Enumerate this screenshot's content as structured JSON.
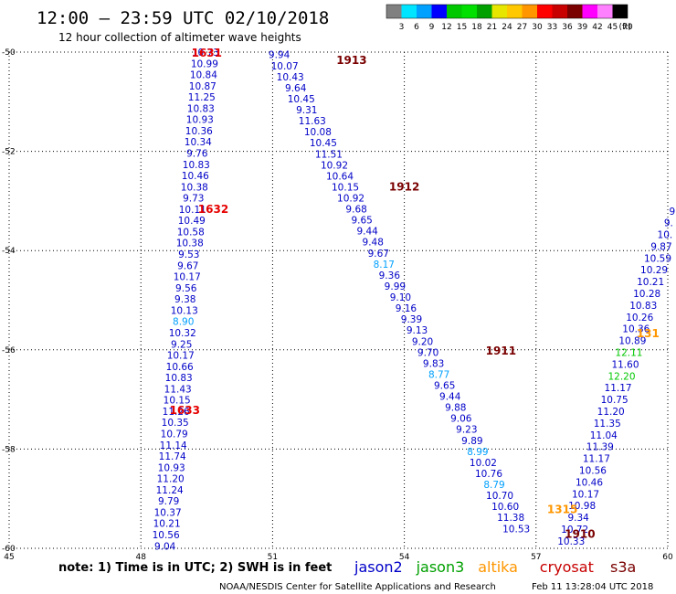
{
  "header": {
    "title": "12:00 – 23:59 UTC 02/10/2018",
    "subtitle": "12 hour collection of altimeter wave heights"
  },
  "legend_scale": {
    "labels": [
      "3",
      "6",
      "9",
      "12",
      "15",
      "18",
      "21",
      "24",
      "27",
      "30",
      "33",
      "36",
      "39",
      "42",
      "45",
      "70"
    ],
    "unit": "(ft)",
    "colors": [
      "#808080",
      "#00e5ff",
      "#00a0ff",
      "#0000ff",
      "#00c800",
      "#00e000",
      "#00a000",
      "#e6e600",
      "#ffc800",
      "#ff9600",
      "#ff0000",
      "#c80000",
      "#7a0000",
      "#ff00ff",
      "#ff80ff",
      "#000000"
    ]
  },
  "footer": {
    "note": "note:  1) Time is in UTC;  2) SWH is in feet",
    "credit": "NOAA/NESDIS Center for Satellite Applications and Research",
    "timestamp": "Feb 11 13:28:04 UTC 2018"
  },
  "satellites": [
    {
      "name": "jason2",
      "color": "#0000c8"
    },
    {
      "name": "jason3",
      "color": "#00a000"
    },
    {
      "name": "altika",
      "color": "#ff9600"
    },
    {
      "name": "cryosat",
      "color": "#c80000"
    },
    {
      "name": "s3a",
      "color": "#7a0000"
    }
  ],
  "chart_data": {
    "type": "scatter",
    "xlim": [
      45,
      60
    ],
    "ylim": [
      -60,
      -50
    ],
    "x_ticks": [
      "45",
      "48",
      "51",
      "54",
      "57",
      "60"
    ],
    "y_ticks": [
      "-50",
      "-52",
      "-54",
      "-56",
      "-58",
      "-60"
    ],
    "grid": true,
    "tracks": [
      {
        "x0": 48.55,
        "x1": 49.47,
        "y0": -59.95,
        "y1": -50.0,
        "values": [
          "9.04",
          "10.56",
          "10.21",
          "10.37",
          "9.79",
          "11.24",
          "11.20",
          "10.93",
          "11.74",
          "11.14",
          "10.79",
          "10.35",
          "11.26",
          "10.15",
          "11.43",
          "10.83",
          "10.66",
          "10.17",
          "9.25",
          "10.32",
          "8.90",
          "10.13",
          "9.38",
          "9.56",
          "10.17",
          "9.67",
          "9.53",
          "10.38",
          "10.58",
          "10.49",
          "10.11",
          "9.73",
          "10.38",
          "10.46",
          "10.83",
          "9.76",
          "10.34",
          "10.36",
          "10.93",
          "10.83",
          "11.25",
          "10.87",
          "10.84",
          "10.99",
          "10.73"
        ],
        "colors": {
          "8.90": "#00a0ff"
        }
      },
      {
        "x0": 51.15,
        "x1": 56.55,
        "y0": -50.05,
        "y1": -59.6,
        "values": [
          "9.94",
          "10.07",
          "10.43",
          "9.64",
          "10.45",
          "9.31",
          "11.63",
          "10.08",
          "10.45",
          "11.51",
          "10.92",
          "10.64",
          "10.15",
          "10.92",
          "9.68",
          "9.65",
          "9.44",
          "9.48",
          "9.67",
          "8.17",
          "9.36",
          "9.99",
          "9.10",
          "9.16",
          "9.39",
          "9.13",
          "9.20",
          "9.70",
          "9.83",
          "8.77",
          "9.65",
          "9.44",
          "9.88",
          "9.06",
          "9.23",
          "9.89",
          "8.99",
          "10.02",
          "10.76",
          "8.79",
          "10.70",
          "10.60",
          "11.38",
          "10.53"
        ],
        "colors": {
          "8.17": "#00a0ff",
          "8.77": "#00a0ff",
          "8.99": "#00a0ff",
          "8.79": "#00a0ff"
        }
      },
      {
        "x0": 60.1,
        "x1": 57.8,
        "y0": -53.2,
        "y1": -59.85,
        "values": [
          "9",
          "9.",
          "10.",
          "9.87",
          "10.59",
          "10.29",
          "10.21",
          "10.28",
          "10.83",
          "10.26",
          "10.36",
          "10.89",
          "12.11",
          "11.60",
          "12.20",
          "11.17",
          "10.75",
          "11.20",
          "11.35",
          "11.04",
          "11.39",
          "11.17",
          "10.56",
          "10.46",
          "10.17",
          "10.98",
          "9.34",
          "10.72",
          "10.33"
        ],
        "colors": {
          "12.11": "#00c800",
          "12.20": "#00c800"
        }
      }
    ],
    "pass_labels": [
      {
        "text": "1631",
        "color": "#e60000",
        "x": 49.5,
        "y": -50.0
      },
      {
        "text": "1632",
        "color": "#e60000",
        "x": 49.65,
        "y": -53.15
      },
      {
        "text": "1633",
        "color": "#e60000",
        "x": 49.0,
        "y": -57.2
      },
      {
        "text": "1913",
        "color": "#7a0000",
        "x": 52.8,
        "y": -50.15
      },
      {
        "text": "1912",
        "color": "#7a0000",
        "x": 54.0,
        "y": -52.7
      },
      {
        "text": "1911",
        "color": "#7a0000",
        "x": 56.2,
        "y": -56.0
      },
      {
        "text": "1910",
        "color": "#7a0000",
        "x": 58.0,
        "y": -59.7
      },
      {
        "text": "1315",
        "color": "#ff9600",
        "x": 57.6,
        "y": -59.2
      },
      {
        "text": "131",
        "color": "#ff9600",
        "x": 59.55,
        "y": -55.65
      }
    ]
  }
}
